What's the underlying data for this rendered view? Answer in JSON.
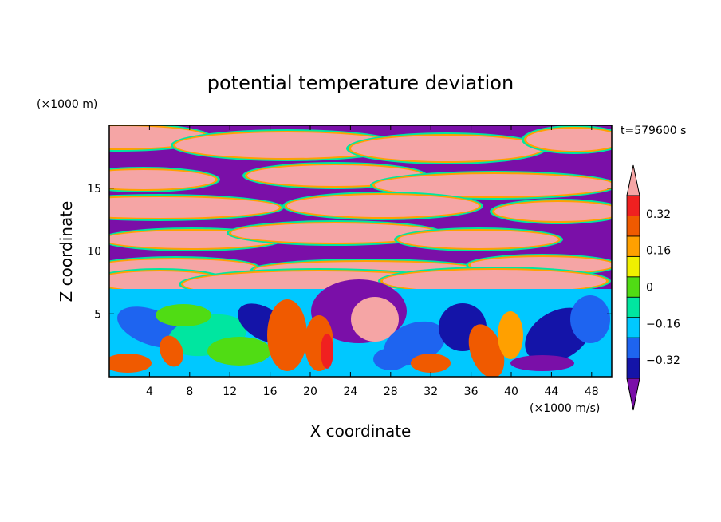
{
  "chart_data": {
    "type": "heatmap",
    "title": "potential temperature deviation",
    "xlabel": "X coordinate",
    "ylabel": "Z coordinate",
    "x_unit": "(×1000 m/s)",
    "y_unit": "(×1000 m)",
    "time_label": "t=579600 s",
    "xlim": [
      0,
      50
    ],
    "ylim": [
      0,
      20
    ],
    "x_ticks": [
      4,
      8,
      12,
      16,
      20,
      24,
      28,
      32,
      36,
      40,
      44,
      48
    ],
    "y_ticks": [
      5,
      10,
      15
    ],
    "colorbar": {
      "labels": [
        "0.32",
        "0.16",
        "0",
        "−0.16",
        "−0.32"
      ],
      "label_values": [
        0.32,
        0.16,
        0,
        -0.16,
        -0.32
      ],
      "levels": [
        -0.4,
        -0.32,
        -0.24,
        -0.16,
        -0.08,
        0,
        0.08,
        0.16,
        0.24,
        0.32,
        0.4
      ],
      "colors": [
        "#7a0fa8",
        "#1414a8",
        "#1e64f0",
        "#00c8ff",
        "#00e6a0",
        "#50dc14",
        "#f0f000",
        "#ffa000",
        "#f05a00",
        "#f02020",
        "#f5a5a5"
      ],
      "extend": "both"
    }
  }
}
